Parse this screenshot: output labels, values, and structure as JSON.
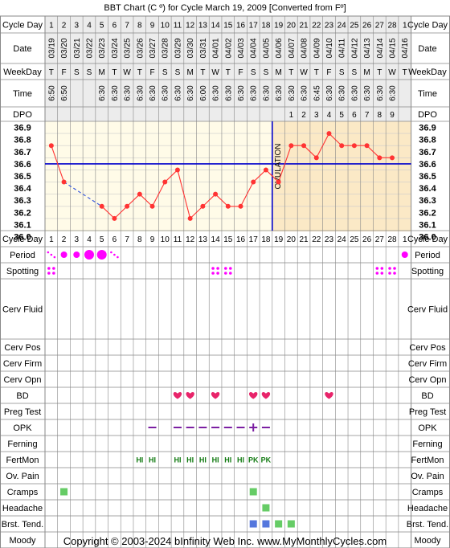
{
  "title": "BBT Chart (C º) for Cycle March 19, 2009  [Converted from Fº]",
  "footer": "Copyright © 2003-2024 bInfinity Web Inc.    www.MyMonthlyCycles.com",
  "colors": {
    "grid": "#888888",
    "temp_line": "#ff3333",
    "coverline": "#0000cc",
    "ovulation_line": "#0000cc",
    "luteal_fill": "#fbe9c6",
    "header_fill": "#ececec",
    "plot_fill": "#fffbe8",
    "period": "#ff00ff",
    "heart": "#e8246a",
    "opk": "#7b1fa2",
    "fertmon": "#117a11",
    "cramps": "#66cc66",
    "headache": "#66cc66",
    "brst_green": "#66cc66",
    "brst_blue": "#5577dd"
  },
  "labels": {
    "cycle_day": "Cycle Day",
    "date": "Date",
    "weekday": "WeekDay",
    "time": "Time",
    "dpo": "DPO",
    "ovulation": "OVULATION"
  },
  "cycle_days": [
    1,
    2,
    3,
    4,
    5,
    6,
    7,
    8,
    9,
    10,
    11,
    12,
    13,
    14,
    15,
    16,
    17,
    18,
    19,
    20,
    21,
    22,
    23,
    24,
    25,
    26,
    27,
    28,
    1
  ],
  "dates": [
    "03/19",
    "03/20",
    "03/21",
    "03/22",
    "03/23",
    "03/24",
    "03/25",
    "03/26",
    "03/27",
    "03/28",
    "03/29",
    "03/30",
    "03/31",
    "04/01",
    "04/02",
    "04/03",
    "04/04",
    "04/05",
    "04/06",
    "04/07",
    "04/08",
    "04/09",
    "04/10",
    "04/11",
    "04/12",
    "04/13",
    "04/14",
    "04/15",
    "04/16"
  ],
  "weekdays": [
    "T",
    "F",
    "S",
    "S",
    "M",
    "T",
    "W",
    "T",
    "F",
    "S",
    "S",
    "M",
    "T",
    "W",
    "T",
    "F",
    "S",
    "S",
    "M",
    "T",
    "W",
    "T",
    "F",
    "S",
    "S",
    "M",
    "T",
    "W",
    "T"
  ],
  "times": [
    "6:50",
    "6:50",
    "",
    "",
    "6:30",
    "6:30",
    "6:30",
    "6:30",
    "6:30",
    "6:30",
    "6:30",
    "6:30",
    "6:00",
    "6:30",
    "6:30",
    "6:30",
    "6:30",
    "6:30",
    "6:30",
    "6:30",
    "6:30",
    "6:45",
    "6:30",
    "6:30",
    "6:30",
    "6:30",
    "6:30",
    "6:30",
    ""
  ],
  "dpo": [
    "",
    "",
    "",
    "",
    "",
    "",
    "",
    "",
    "",
    "",
    "",
    "",
    "",
    "",
    "",
    "",
    "",
    "",
    "",
    "1",
    "2",
    "3",
    "4",
    "5",
    "6",
    "7",
    "8",
    "9",
    ""
  ],
  "temp_scale": [
    "36.9",
    "36.8",
    "36.7",
    "36.6",
    "36.5",
    "36.4",
    "36.3",
    "36.2",
    "36.1",
    "36.0"
  ],
  "chart_data": {
    "type": "line",
    "title": "BBT Chart (C º) for Cycle March 19, 2009  [Converted from Fº]",
    "x": [
      1,
      2,
      3,
      4,
      5,
      6,
      7,
      8,
      9,
      10,
      11,
      12,
      13,
      14,
      15,
      16,
      17,
      18,
      19,
      20,
      21,
      22,
      23,
      24,
      25,
      26,
      27,
      28,
      29
    ],
    "series": [
      {
        "values": [
          36.7,
          36.4,
          null,
          null,
          36.2,
          36.1,
          36.2,
          36.3,
          36.2,
          36.4,
          36.5,
          36.1,
          36.2,
          36.3,
          36.2,
          36.2,
          36.4,
          36.5,
          36.4,
          36.7,
          36.7,
          36.6,
          36.8,
          36.7,
          36.7,
          36.7,
          36.6,
          36.6,
          null
        ]
      }
    ],
    "coverline": 36.55,
    "ovulation_day": 19,
    "ylim": [
      36.0,
      36.9
    ],
    "grid": true
  },
  "rows": [
    {
      "label": "Period",
      "marks": [
        {
          "d": 1,
          "k": "spot"
        },
        {
          "d": 2,
          "k": "dot-s"
        },
        {
          "d": 3,
          "k": "dot-s"
        },
        {
          "d": 4,
          "k": "dot-l"
        },
        {
          "d": 5,
          "k": "dot-l"
        },
        {
          "d": 6,
          "k": "spot"
        },
        {
          "d": 29,
          "k": "dot-s"
        }
      ]
    },
    {
      "label": "Spotting",
      "marks": [
        {
          "d": 1,
          "k": "dots4"
        },
        {
          "d": 14,
          "k": "dots4"
        },
        {
          "d": 15,
          "k": "dots4"
        },
        {
          "d": 27,
          "k": "dots4"
        },
        {
          "d": 28,
          "k": "dots4"
        }
      ]
    },
    {
      "label": "Cerv Fluid",
      "marks": []
    },
    {
      "label": "Cerv Pos",
      "marks": []
    },
    {
      "label": "Cerv Firm",
      "marks": []
    },
    {
      "label": "Cerv Opn",
      "marks": []
    },
    {
      "label": "BD",
      "marks": [
        {
          "d": 11,
          "k": "heart"
        },
        {
          "d": 12,
          "k": "heart"
        },
        {
          "d": 14,
          "k": "heart"
        },
        {
          "d": 17,
          "k": "heart"
        },
        {
          "d": 18,
          "k": "heart"
        },
        {
          "d": 23,
          "k": "heart"
        }
      ]
    },
    {
      "label": "Preg Test",
      "marks": []
    },
    {
      "label": "OPK",
      "marks": [
        {
          "d": 9,
          "k": "neg"
        },
        {
          "d": 11,
          "k": "neg"
        },
        {
          "d": 12,
          "k": "neg"
        },
        {
          "d": 13,
          "k": "neg"
        },
        {
          "d": 14,
          "k": "neg"
        },
        {
          "d": 15,
          "k": "neg"
        },
        {
          "d": 16,
          "k": "neg"
        },
        {
          "d": 17,
          "k": "pos"
        },
        {
          "d": 18,
          "k": "neg"
        }
      ]
    },
    {
      "label": "Ferning",
      "marks": []
    },
    {
      "label": "FertMon",
      "marks": [
        {
          "d": 8,
          "k": "txt",
          "t": "HI"
        },
        {
          "d": 9,
          "k": "txt",
          "t": "HI"
        },
        {
          "d": 11,
          "k": "txt",
          "t": "HI"
        },
        {
          "d": 12,
          "k": "txt",
          "t": "HI"
        },
        {
          "d": 13,
          "k": "txt",
          "t": "HI"
        },
        {
          "d": 14,
          "k": "txt",
          "t": "HI"
        },
        {
          "d": 15,
          "k": "txt",
          "t": "HI"
        },
        {
          "d": 16,
          "k": "txt",
          "t": "HI"
        },
        {
          "d": 17,
          "k": "txt",
          "t": "PK"
        },
        {
          "d": 18,
          "k": "txt",
          "t": "PK"
        }
      ]
    },
    {
      "label": "Ov. Pain",
      "marks": []
    },
    {
      "label": "Cramps",
      "marks": [
        {
          "d": 2,
          "k": "sq-g"
        },
        {
          "d": 17,
          "k": "sq-g"
        }
      ]
    },
    {
      "label": "Headache",
      "marks": [
        {
          "d": 18,
          "k": "sq-g"
        }
      ]
    },
    {
      "label": "Brst. Tend.",
      "marks": [
        {
          "d": 17,
          "k": "sq-b"
        },
        {
          "d": 18,
          "k": "sq-b"
        },
        {
          "d": 19,
          "k": "sq-g"
        },
        {
          "d": 20,
          "k": "sq-g"
        }
      ]
    },
    {
      "label": "Moody",
      "marks": []
    }
  ]
}
